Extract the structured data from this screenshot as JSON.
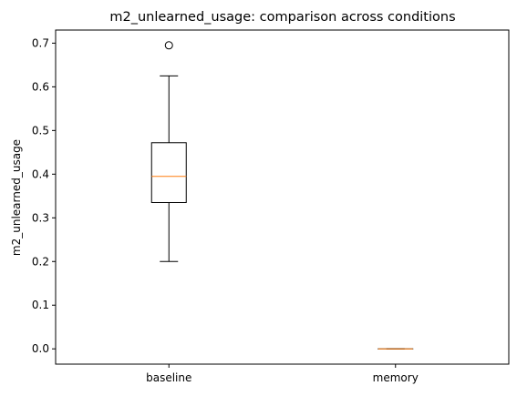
{
  "chart_data": {
    "type": "boxplot",
    "title": "m2_unlearned_usage: comparison across conditions",
    "xlabel": "",
    "ylabel": "m2_unlearned_usage",
    "categories": [
      "baseline",
      "memory"
    ],
    "boxes": [
      {
        "name": "baseline",
        "whisker_low": 0.2,
        "q1": 0.335,
        "median": 0.395,
        "q3": 0.472,
        "whisker_high": 0.625,
        "outliers": [
          0.695
        ]
      },
      {
        "name": "memory",
        "whisker_low": 0.0,
        "q1": 0.0,
        "median": 0.0,
        "q3": 0.0,
        "whisker_high": 0.0,
        "outliers": []
      }
    ],
    "yticks": [
      0.0,
      0.1,
      0.2,
      0.3,
      0.4,
      0.5,
      0.6,
      0.7
    ],
    "ytick_labels": [
      "0.0",
      "0.1",
      "0.2",
      "0.3",
      "0.4",
      "0.5",
      "0.6",
      "0.7"
    ],
    "ylim": [
      -0.035,
      0.73
    ],
    "grid": false,
    "colors": {
      "box": "#000000",
      "median": "#ff7f0e",
      "outlier": "#000000"
    }
  }
}
